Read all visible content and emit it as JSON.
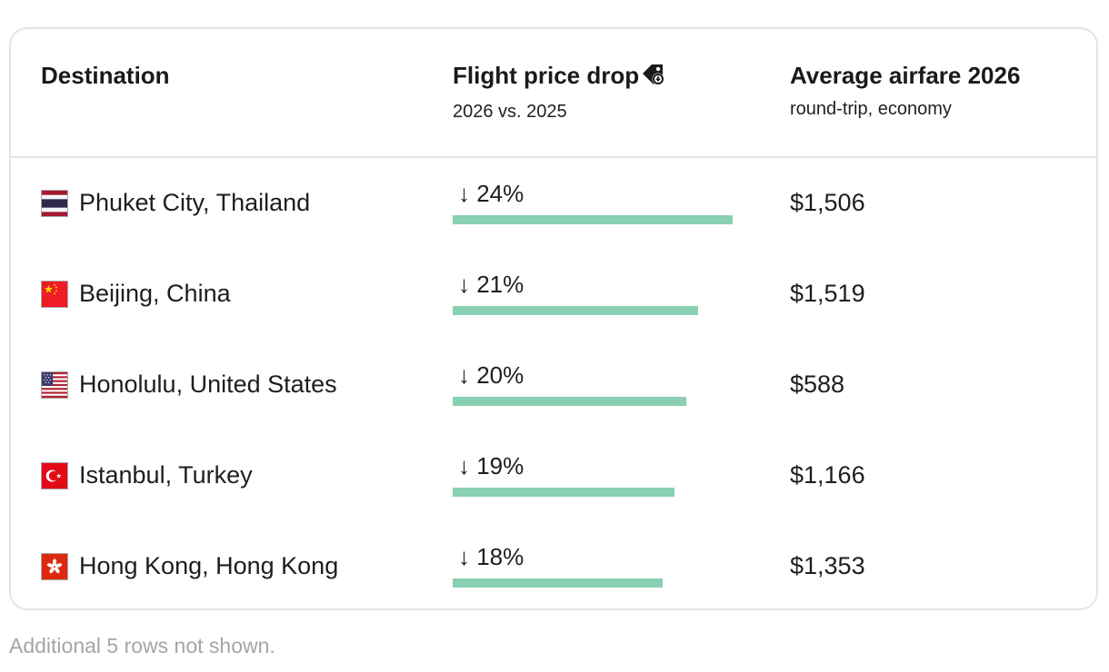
{
  "header": {
    "destination_label": "Destination",
    "drop_label": "Flight price drop",
    "drop_sub": "2026 vs. 2025",
    "drop_icon": "price-tag-icon",
    "fare_label": "Average airfare 2026",
    "fare_sub": "round-trip, economy"
  },
  "accent_color": "#88d0b1",
  "rows": [
    {
      "destination": "Phuket City, Thailand",
      "flag": "thailand-flag-icon",
      "drop": "↓ 24%",
      "drop_percent": 24,
      "fare": "$1,506"
    },
    {
      "destination": "Beijing, China",
      "flag": "china-flag-icon",
      "drop": "↓ 21%",
      "drop_percent": 21,
      "fare": "$1,519"
    },
    {
      "destination": "Honolulu, United States",
      "flag": "usa-flag-icon",
      "drop": "↓ 20%",
      "drop_percent": 20,
      "fare": "$588"
    },
    {
      "destination": "Istanbul, Turkey",
      "flag": "turkey-flag-icon",
      "drop": "↓ 19%",
      "drop_percent": 19,
      "fare": "$1,166"
    },
    {
      "destination": "Hong Kong, Hong Kong",
      "flag": "hongkong-flag-icon",
      "drop": "↓ 18%",
      "drop_percent": 18,
      "fare": "$1,353"
    }
  ],
  "footnote": "Additional 5 rows not shown."
}
